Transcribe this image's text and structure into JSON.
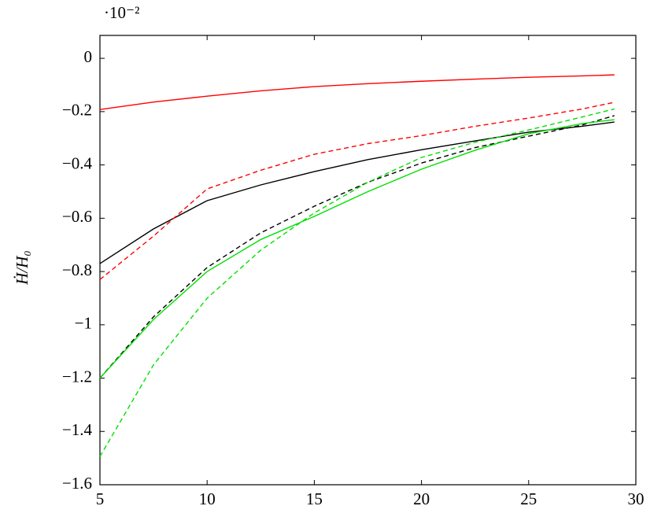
{
  "chart_data": {
    "type": "line",
    "multiplier": "·10⁻²",
    "y_label": "Ḣ/H₀",
    "x": [
      5,
      7.5,
      10,
      12.5,
      15,
      17.5,
      20,
      22.5,
      25,
      27.5,
      29
    ],
    "series": [
      {
        "color": "#ff0000",
        "dash": false,
        "values": [
          -0.192,
          -0.164,
          -0.142,
          -0.122,
          -0.106,
          -0.095,
          -0.086,
          -0.078,
          -0.071,
          -0.066,
          -0.062
        ]
      },
      {
        "color": "#000000",
        "dash": false,
        "values": [
          -0.77,
          -0.64,
          -0.534,
          -0.475,
          -0.425,
          -0.38,
          -0.343,
          -0.31,
          -0.277,
          -0.255,
          -0.239
        ]
      },
      {
        "color": "#ff0000",
        "dash": true,
        "values": [
          -0.83,
          -0.667,
          -0.49,
          -0.42,
          -0.36,
          -0.32,
          -0.29,
          -0.255,
          -0.224,
          -0.19,
          -0.165
        ]
      },
      {
        "color": "#000000",
        "dash": true,
        "values": [
          -1.2,
          -0.97,
          -0.785,
          -0.655,
          -0.555,
          -0.465,
          -0.393,
          -0.335,
          -0.292,
          -0.25,
          -0.215
        ]
      },
      {
        "color": "#00e000",
        "dash": false,
        "values": [
          -1.2,
          -0.98,
          -0.8,
          -0.68,
          -0.593,
          -0.5,
          -0.416,
          -0.345,
          -0.283,
          -0.245,
          -0.23
        ]
      },
      {
        "color": "#00e000",
        "dash": true,
        "values": [
          -1.494,
          -1.15,
          -0.9,
          -0.72,
          -0.58,
          -0.465,
          -0.372,
          -0.315,
          -0.269,
          -0.22,
          -0.19
        ]
      }
    ],
    "xlim": [
      5,
      30
    ],
    "xticks": [
      5,
      10,
      15,
      20,
      25,
      30
    ],
    "ylim": [
      -1.6,
      0.086
    ],
    "yticks": [
      {
        "value": -1.6,
        "label": "−1.6"
      },
      {
        "value": -1.4,
        "label": "−1.4"
      },
      {
        "value": -1.2,
        "label": "−1.2"
      },
      {
        "value": -1,
        "label": "−1"
      },
      {
        "value": -0.8,
        "label": "−0.8"
      },
      {
        "value": -0.6,
        "label": "−0.6"
      },
      {
        "value": -0.4,
        "label": "−0.4"
      },
      {
        "value": -0.2,
        "label": "−0.2"
      },
      0
    ],
    "grid": false
  }
}
